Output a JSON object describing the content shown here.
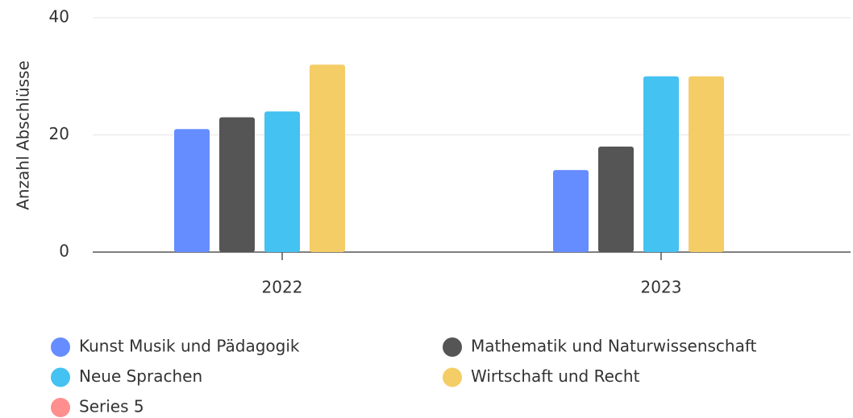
{
  "chart_data": {
    "type": "bar",
    "y_label": "Anzahl Abschlüsse",
    "categories": [
      "2022",
      "2023"
    ],
    "series": [
      {
        "name": "Kunst Musik und Pädagogik",
        "color": "#668dff",
        "values": [
          21,
          14
        ]
      },
      {
        "name": "Mathematik und Naturwissenschaft",
        "color": "#555555",
        "values": [
          23,
          18
        ]
      },
      {
        "name": "Neue Sprachen",
        "color": "#44c2f1",
        "values": [
          24,
          30
        ]
      },
      {
        "name": "Wirtschaft und Recht",
        "color": "#f4cd67",
        "values": [
          32,
          30
        ]
      },
      {
        "name": "Series 5",
        "color": "#ff8e8e",
        "values": [
          null,
          null
        ]
      }
    ],
    "ylim": [
      0,
      40
    ],
    "yticks": [
      0,
      20,
      40
    ],
    "grid": true
  }
}
